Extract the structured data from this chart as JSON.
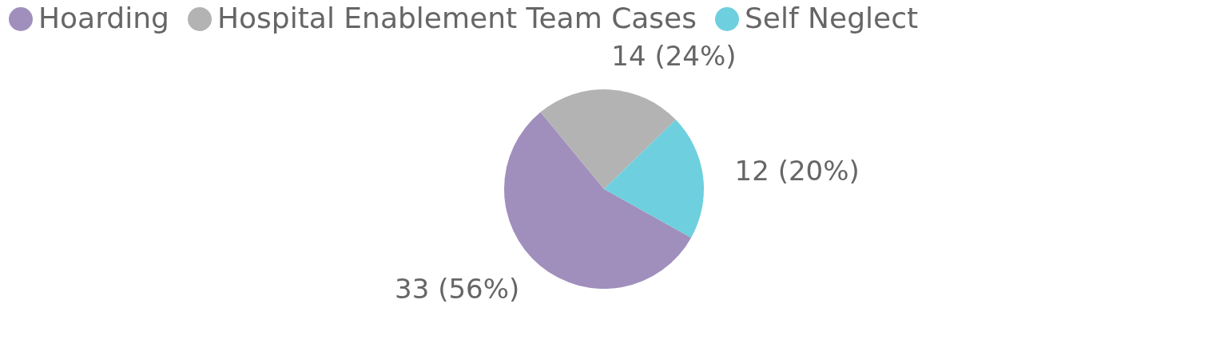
{
  "chart_data": {
    "type": "pie",
    "categories": [
      "Hoarding",
      "Hospital Enablement Team Cases",
      "Self Neglect"
    ],
    "values": [
      33,
      14,
      12
    ],
    "colors": [
      "#a08fbd",
      "#b3b3b3",
      "#6ecfde"
    ],
    "value_labels": [
      "33 (56%)",
      "14 (24%)",
      "12 (20%)"
    ],
    "legend": "top"
  }
}
